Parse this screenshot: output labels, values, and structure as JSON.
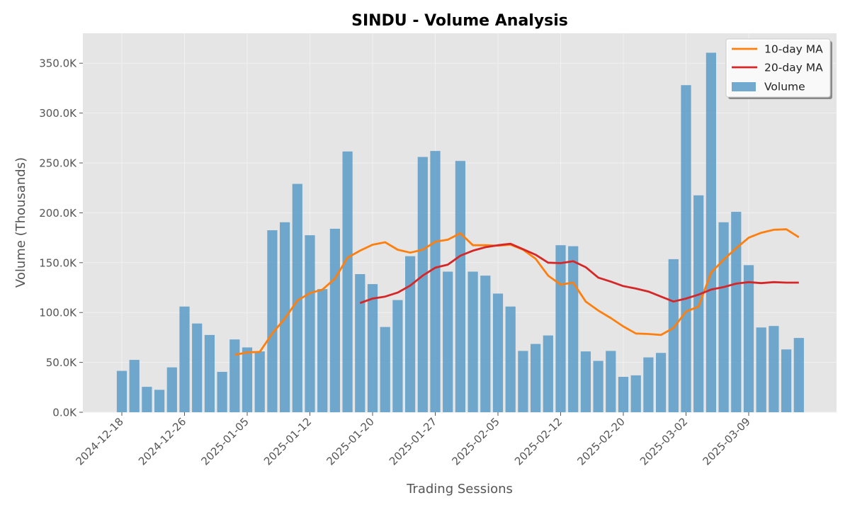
{
  "chart_data": {
    "type": "bar",
    "title": "SINDU - Volume Analysis",
    "xlabel": "Trading Sessions",
    "ylabel": "Volume (Thousands)",
    "ylim": [
      0,
      380
    ],
    "y_ticks": [
      0,
      50,
      100,
      150,
      200,
      250,
      300,
      350
    ],
    "y_tick_labels": [
      "0.0K",
      "50.0K",
      "100.0K",
      "150.0K",
      "200.0K",
      "250.0K",
      "300.0K",
      "350.0K"
    ],
    "x_tick_labels": [
      "2024-12-18",
      "2024-12-26",
      "2025-01-05",
      "2025-01-12",
      "2025-01-20",
      "2025-01-27",
      "2025-02-05",
      "2025-02-12",
      "2025-02-20",
      "2025-03-02",
      "2025-03-09"
    ],
    "x_tick_positions": [
      0,
      5,
      10,
      15,
      20,
      25,
      30,
      35,
      40,
      45,
      50
    ],
    "grid": true,
    "legend_position": "top-right",
    "colors": {
      "volume": "#5b9bc8",
      "ma10": "#ff7f0e",
      "ma20": "#d62728",
      "plot_background": "#e5e5e5",
      "grid": "#f2f2f2"
    },
    "series": [
      {
        "name": "Volume",
        "type": "bar",
        "values": [
          41.5,
          52.5,
          25.5,
          22.5,
          45,
          106,
          89,
          77.5,
          40.5,
          73,
          65,
          61,
          182.5,
          190.5,
          229,
          177.5,
          123.5,
          184,
          261.5,
          138.5,
          128.5,
          85.5,
          112.5,
          156.5,
          256,
          262,
          141,
          252,
          141,
          137,
          119,
          106,
          61.5,
          68.5,
          77,
          167.5,
          166.5,
          61,
          51.5,
          61.5,
          35.5,
          37,
          55,
          59.5,
          153.5,
          328,
          217.5,
          360.5,
          190.5,
          201,
          147.5,
          85,
          86.5,
          63,
          74.5
        ]
      },
      {
        "name": "10-day MA",
        "type": "line",
        "start_index": 9,
        "values": [
          57.5,
          60,
          60.5,
          79,
          94,
          112,
          119.5,
          123,
          134,
          155,
          162,
          168,
          170.5,
          163,
          160,
          163,
          171,
          173,
          179.5,
          167.5,
          167.5,
          167,
          168,
          163,
          154,
          137,
          128,
          130,
          111,
          102,
          94.5,
          86,
          79,
          78.5,
          77.5,
          84.5,
          101,
          106,
          140,
          153,
          164.5,
          175,
          180,
          183,
          183.5,
          175.5
        ]
      },
      {
        "name": "20-day MA",
        "type": "line",
        "start_index": 19,
        "values": [
          109.5,
          114,
          116,
          120,
          127,
          137,
          145,
          148,
          157,
          162,
          165.5,
          167.5,
          169,
          163.5,
          158,
          150,
          149.5,
          151.5,
          145.5,
          135,
          131,
          126.5,
          124,
          121,
          116,
          111,
          114,
          118,
          123,
          125.5,
          129,
          130.5,
          129.5,
          130.5,
          130,
          130
        ]
      }
    ]
  }
}
